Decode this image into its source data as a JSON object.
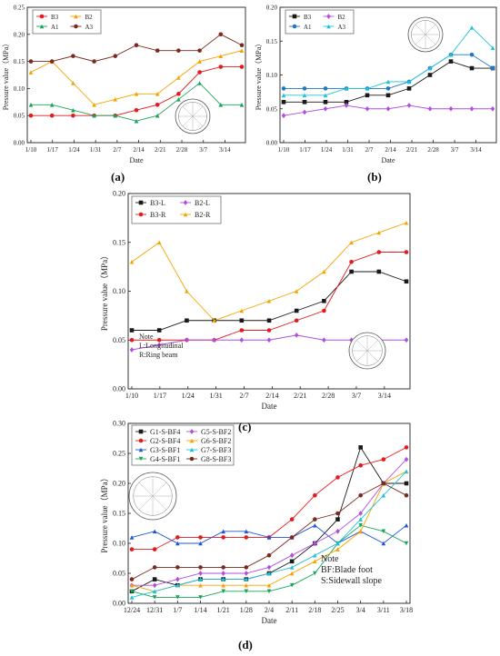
{
  "captions": {
    "a": "(a)",
    "b": "(b)",
    "c": "(c)",
    "d": "(d)"
  },
  "chart_data": [
    {
      "id": "a",
      "type": "line",
      "xlabel": "Date",
      "ylabel": "Pressure value（MPa）",
      "ylim": [
        0,
        0.25
      ],
      "yticks": [
        "0.00",
        "0.05",
        "0.10",
        "0.15",
        "0.20",
        "0.25"
      ],
      "xticks": [
        "1/10",
        "1/17",
        "1/24",
        "1/31",
        "2/7",
        "2/14",
        "2/21",
        "2/28",
        "3/7",
        "3/14"
      ],
      "grid": false,
      "legend": "top-left",
      "x": [
        "1/10",
        "1/17",
        "1/24",
        "1/31",
        "2/7",
        "2/14",
        "2/21",
        "2/28",
        "3/7",
        "3/14",
        "3/18"
      ],
      "series": [
        {
          "name": "B3",
          "color": "#e41a1c",
          "marker": "circle",
          "values": [
            0.05,
            0.05,
            0.05,
            0.05,
            0.05,
            0.06,
            0.07,
            0.09,
            0.13,
            0.14,
            0.14
          ]
        },
        {
          "name": "A1",
          "color": "#1aa55a",
          "marker": "triangle",
          "values": [
            0.07,
            0.07,
            0.06,
            0.05,
            0.05,
            0.04,
            0.05,
            0.08,
            0.11,
            0.07,
            0.07
          ]
        },
        {
          "name": "B2",
          "color": "#f5a300",
          "marker": "triangle",
          "values": [
            0.13,
            0.15,
            0.11,
            0.07,
            0.08,
            0.09,
            0.09,
            0.12,
            0.15,
            0.16,
            0.17
          ]
        },
        {
          "name": "A3",
          "color": "#7a2a1e",
          "marker": "circle",
          "values": [
            0.15,
            0.15,
            0.16,
            0.15,
            0.16,
            0.18,
            0.17,
            0.17,
            0.17,
            0.2,
            0.18
          ]
        }
      ]
    },
    {
      "id": "b",
      "type": "line",
      "xlabel": "Date",
      "ylabel": "Pressure value（MPa）",
      "ylim": [
        0,
        0.2
      ],
      "yticks": [
        "0.00",
        "0.05",
        "0.10",
        "0.15",
        "0.20"
      ],
      "xticks": [
        "1/10",
        "1/17",
        "1/24",
        "1/31",
        "2/7",
        "2/14",
        "2/21",
        "2/28",
        "3/7",
        "3/14"
      ],
      "grid": false,
      "legend": "top-left",
      "x": [
        "1/10",
        "1/17",
        "1/24",
        "1/31",
        "2/7",
        "2/14",
        "2/21",
        "2/28",
        "3/7",
        "3/14",
        "3/18"
      ],
      "series": [
        {
          "name": "B3",
          "color": "#1a1a1a",
          "marker": "square",
          "values": [
            0.06,
            0.06,
            0.06,
            0.06,
            0.07,
            0.07,
            0.08,
            0.1,
            0.12,
            0.11,
            0.11
          ]
        },
        {
          "name": "A1",
          "color": "#1f78c8",
          "marker": "circle",
          "values": [
            0.08,
            0.08,
            0.08,
            0.08,
            0.08,
            0.08,
            0.09,
            0.11,
            0.13,
            0.13,
            0.11
          ]
        },
        {
          "name": "B2",
          "color": "#b04ee0",
          "marker": "diamond",
          "values": [
            0.04,
            0.045,
            0.05,
            0.055,
            0.05,
            0.05,
            0.055,
            0.05,
            0.05,
            0.05,
            0.05
          ]
        },
        {
          "name": "A3",
          "color": "#1fc2d8",
          "marker": "triangle",
          "values": [
            0.07,
            0.07,
            0.07,
            0.08,
            0.08,
            0.09,
            0.09,
            0.11,
            0.13,
            0.17,
            0.14
          ]
        }
      ]
    },
    {
      "id": "c",
      "type": "line",
      "xlabel": "Date",
      "ylabel": "Pressure value（MPa）",
      "ylim": [
        0,
        0.2
      ],
      "yticks": [
        "0.00",
        "0.05",
        "0.10",
        "0.15",
        "0.20"
      ],
      "xticks": [
        "1/10",
        "1/17",
        "1/24",
        "1/31",
        "2/7",
        "2/14",
        "2/21",
        "2/28",
        "3/7",
        "3/14"
      ],
      "grid": false,
      "legend": "top-left",
      "x": [
        "1/10",
        "1/17",
        "1/24",
        "1/31",
        "2/7",
        "2/14",
        "2/21",
        "2/28",
        "3/7",
        "3/14",
        "3/18"
      ],
      "series": [
        {
          "name": "B3-L",
          "color": "#1a1a1a",
          "marker": "square",
          "values": [
            0.06,
            0.06,
            0.07,
            0.07,
            0.07,
            0.07,
            0.08,
            0.09,
            0.12,
            0.12,
            0.11
          ]
        },
        {
          "name": "B3-R",
          "color": "#e41a1c",
          "marker": "circle",
          "values": [
            0.05,
            0.05,
            0.05,
            0.05,
            0.06,
            0.06,
            0.07,
            0.08,
            0.13,
            0.14,
            0.14
          ]
        },
        {
          "name": "B2-L",
          "color": "#b04ee0",
          "marker": "diamond",
          "values": [
            0.04,
            0.045,
            0.05,
            0.05,
            0.05,
            0.05,
            0.055,
            0.05,
            0.05,
            0.05,
            0.05
          ]
        },
        {
          "name": "B2-R",
          "color": "#f5a300",
          "marker": "triangle",
          "values": [
            0.13,
            0.15,
            0.1,
            0.07,
            0.08,
            0.09,
            0.1,
            0.12,
            0.15,
            0.16,
            0.17
          ]
        }
      ],
      "note": [
        "Note",
        "L:Longitudinal",
        "R:Ring beam"
      ]
    },
    {
      "id": "d",
      "type": "line",
      "xlabel": "Date",
      "ylabel": "Pressure value（MPa）",
      "ylim": [
        0,
        0.3
      ],
      "yticks": [
        "0.00",
        "0.05",
        "0.10",
        "0.15",
        "0.20",
        "0.25",
        "0.30"
      ],
      "xticks": [
        "12/24",
        "12/31",
        "1/7",
        "1/14",
        "1/21",
        "1/28",
        "2/4",
        "2/11",
        "2/18",
        "2/25",
        "3/4",
        "3/11",
        "3/18"
      ],
      "grid": false,
      "legend": "top-left",
      "x": [
        "12/24",
        "12/31",
        "1/7",
        "1/14",
        "1/21",
        "1/28",
        "2/4",
        "2/11",
        "2/18",
        "2/25",
        "3/4",
        "3/11",
        "3/18"
      ],
      "series": [
        {
          "name": "G1-S-BF4",
          "color": "#1a1a1a",
          "marker": "square",
          "values": [
            0.02,
            0.04,
            0.03,
            0.04,
            0.04,
            0.04,
            0.05,
            0.07,
            0.1,
            0.14,
            0.26,
            0.2,
            0.2
          ]
        },
        {
          "name": "G2-S-BF4",
          "color": "#e41a1c",
          "marker": "circle",
          "values": [
            0.09,
            0.09,
            0.11,
            0.11,
            0.11,
            0.11,
            0.11,
            0.14,
            0.18,
            0.21,
            0.23,
            0.24,
            0.26
          ]
        },
        {
          "name": "G3-S-BF1",
          "color": "#1f55d8",
          "marker": "triangle",
          "values": [
            0.11,
            0.12,
            0.1,
            0.1,
            0.12,
            0.12,
            0.11,
            0.11,
            0.13,
            0.1,
            0.12,
            0.1,
            0.13
          ]
        },
        {
          "name": "G4-S-BF1",
          "color": "#1aa55a",
          "marker": "triangle-down",
          "values": [
            0.02,
            0.01,
            0.01,
            0.01,
            0.02,
            0.02,
            0.02,
            0.03,
            0.05,
            0.1,
            0.13,
            0.12,
            0.1
          ]
        },
        {
          "name": "G5-S-BF2",
          "color": "#b04ee0",
          "marker": "diamond",
          "values": [
            0.03,
            0.03,
            0.04,
            0.05,
            0.05,
            0.05,
            0.06,
            0.08,
            0.1,
            0.12,
            0.15,
            0.2,
            0.24
          ]
        },
        {
          "name": "G6-S-BF2",
          "color": "#f5a300",
          "marker": "triangle",
          "values": [
            0.03,
            0.02,
            0.03,
            0.03,
            0.03,
            0.03,
            0.03,
            0.05,
            0.07,
            0.09,
            0.12,
            0.2,
            0.22
          ]
        },
        {
          "name": "G7-S-BF3",
          "color": "#1fc2d8",
          "marker": "triangle",
          "values": [
            0.01,
            0.02,
            0.03,
            0.04,
            0.04,
            0.04,
            0.05,
            0.06,
            0.08,
            0.1,
            0.14,
            0.18,
            0.22
          ]
        },
        {
          "name": "G8-S-BF3",
          "color": "#7a2a1e",
          "marker": "circle",
          "values": [
            0.04,
            0.06,
            0.06,
            0.06,
            0.06,
            0.06,
            0.08,
            0.11,
            0.14,
            0.15,
            0.18,
            0.2,
            0.18
          ]
        }
      ],
      "note": [
        "Note",
        "BF:Blade foot",
        "S:Sidewall slope"
      ]
    }
  ]
}
